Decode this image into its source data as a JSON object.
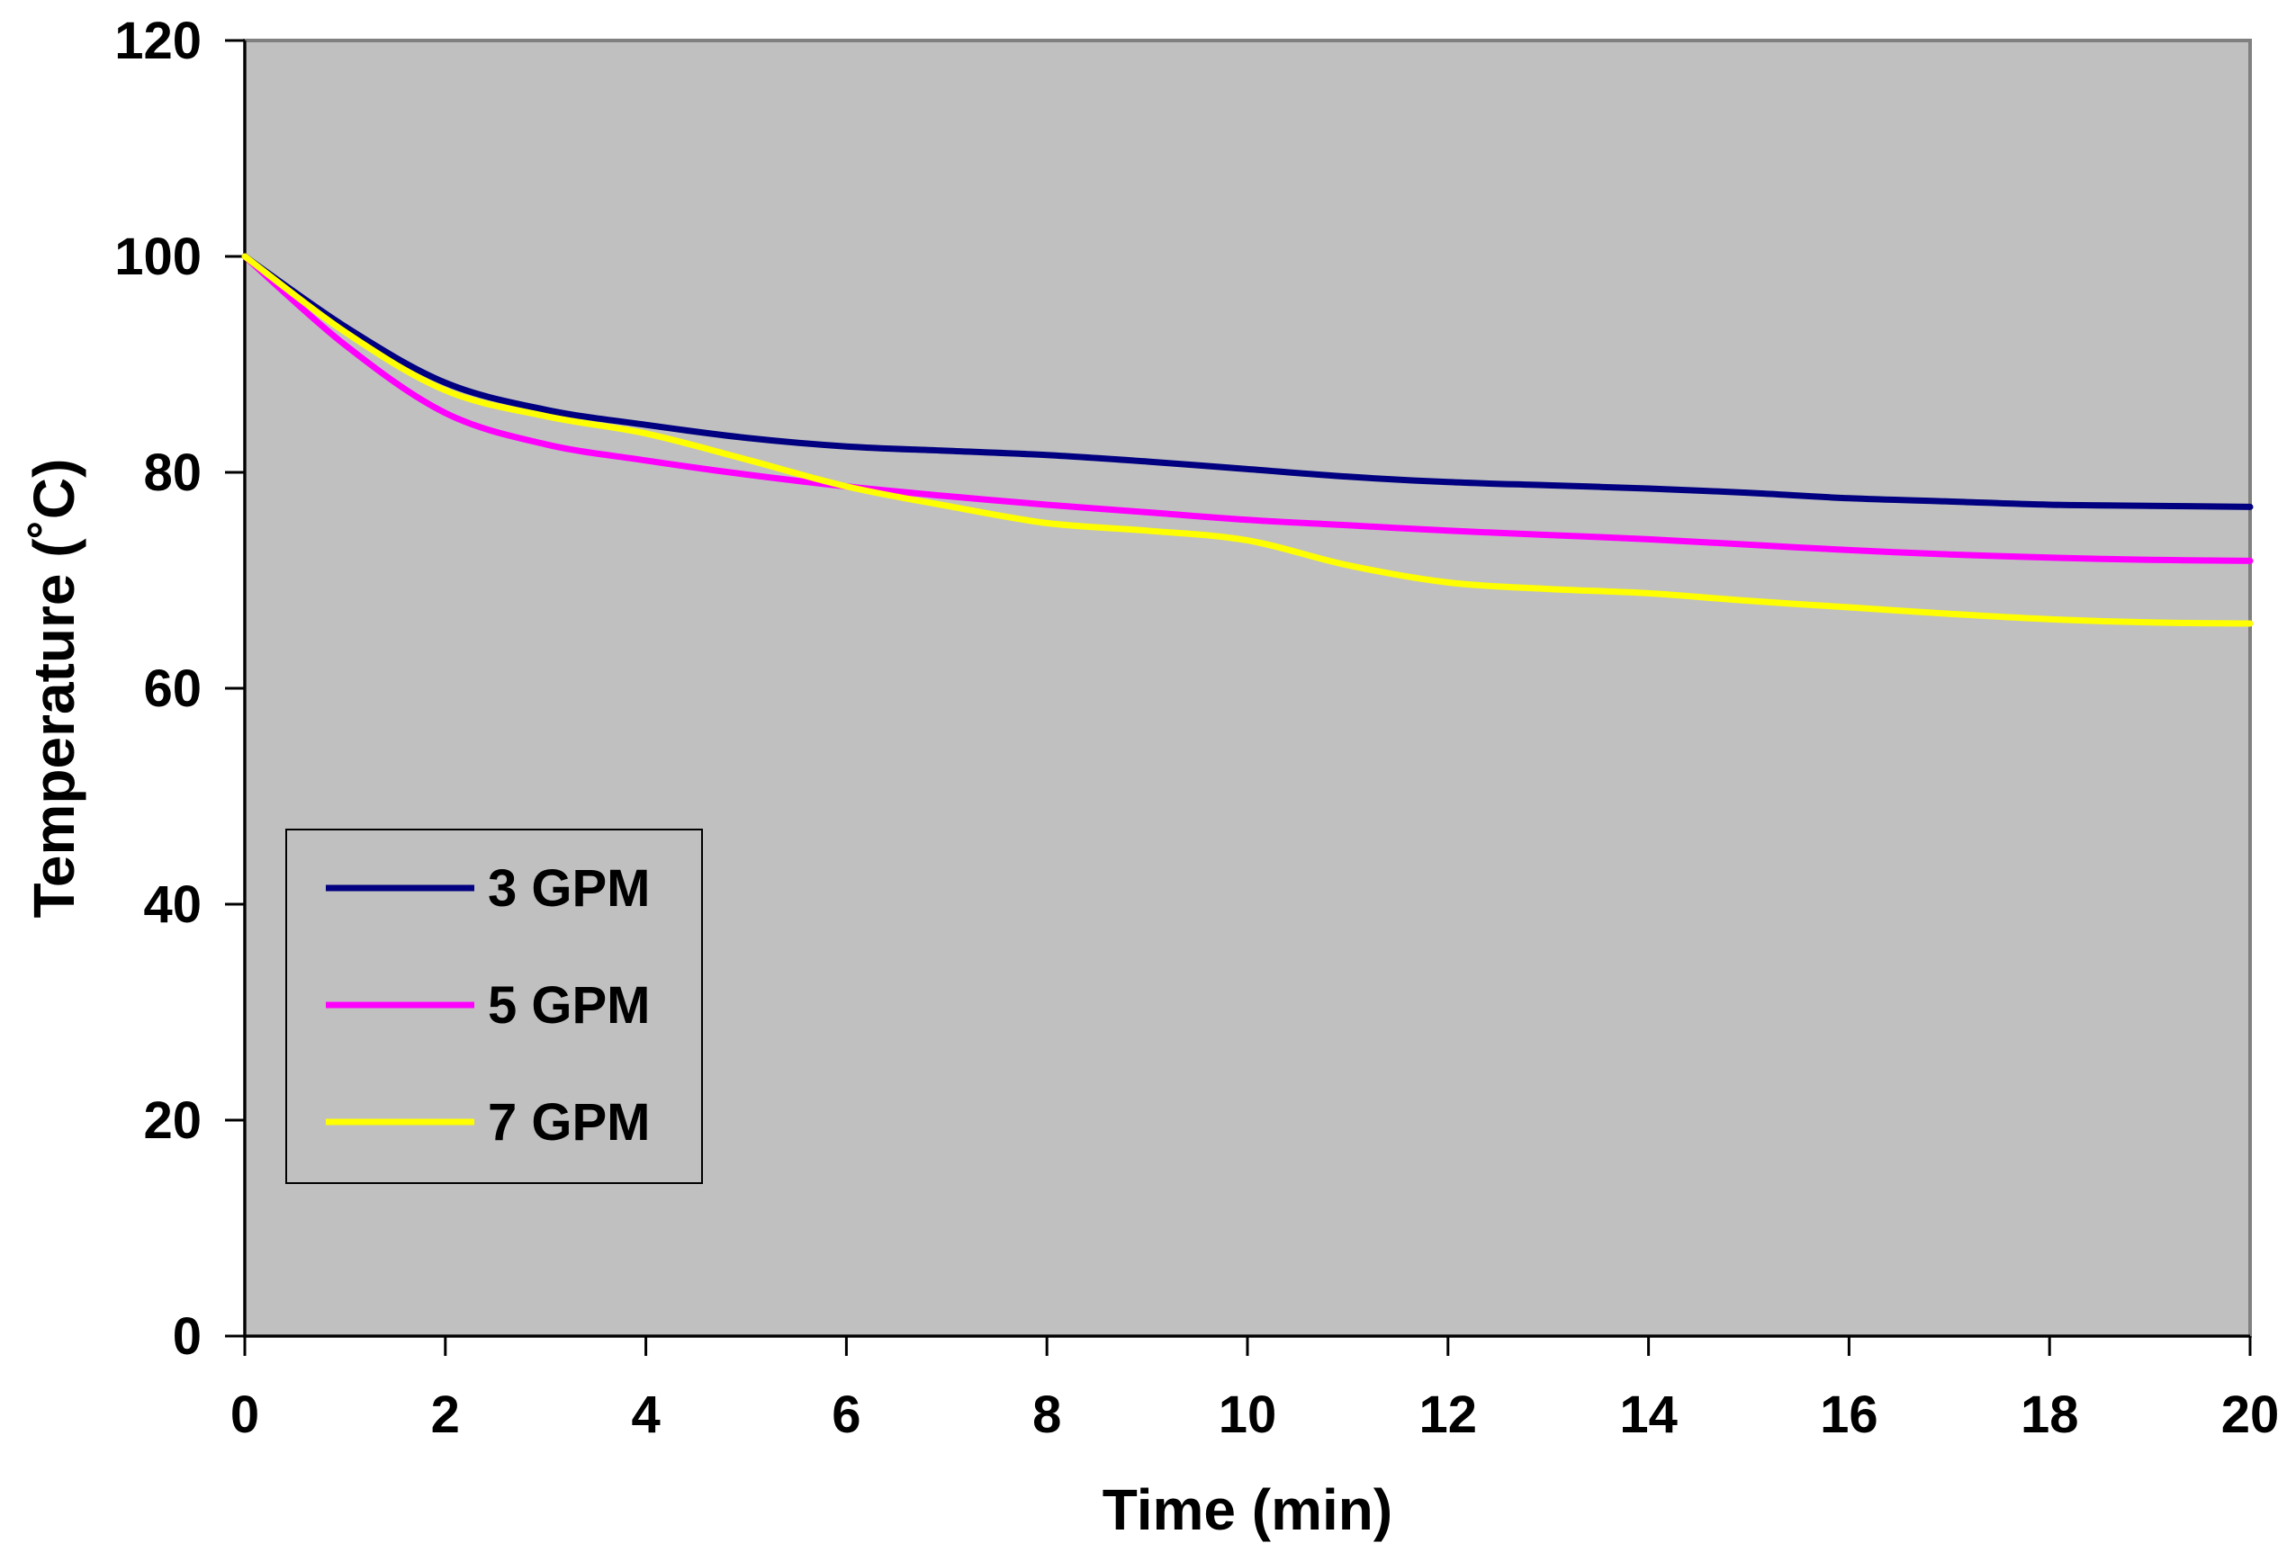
{
  "chart_data": {
    "type": "line",
    "title": "",
    "xlabel": "Time (min)",
    "ylabel": "Temperature (˚C)",
    "xlim": [
      0,
      20
    ],
    "ylim": [
      0,
      120
    ],
    "xticks": [
      0,
      2,
      4,
      6,
      8,
      10,
      12,
      14,
      16,
      18,
      20
    ],
    "yticks": [
      0,
      20,
      40,
      60,
      80,
      100,
      120
    ],
    "grid": false,
    "legend_position": "lower-left",
    "series": [
      {
        "name": "3 GPM",
        "color": "#000080",
        "x": [
          0,
          1,
          2,
          3,
          4,
          5,
          6,
          7,
          8,
          9,
          10,
          11,
          12,
          13,
          14,
          15,
          16,
          17,
          18,
          19,
          20
        ],
        "y": [
          100,
          93.5,
          88.3,
          85.8,
          84.4,
          83.2,
          82.4,
          82.0,
          81.6,
          81.0,
          80.3,
          79.6,
          79.1,
          78.8,
          78.5,
          78.1,
          77.6,
          77.3,
          77.0,
          76.9,
          76.8
        ]
      },
      {
        "name": "5 GPM",
        "color": "#FF00FF",
        "x": [
          0,
          1,
          2,
          3,
          4,
          5,
          6,
          7,
          8,
          9,
          10,
          11,
          12,
          13,
          14,
          15,
          16,
          17,
          18,
          19,
          20
        ],
        "y": [
          100,
          91.8,
          85.5,
          82.6,
          81.1,
          79.8,
          78.7,
          77.8,
          77.0,
          76.3,
          75.6,
          75.1,
          74.6,
          74.2,
          73.8,
          73.3,
          72.8,
          72.4,
          72.1,
          71.9,
          71.8
        ]
      },
      {
        "name": "7 GPM",
        "color": "#FFFF00",
        "x": [
          0,
          1,
          2,
          3,
          4,
          5,
          6,
          7,
          8,
          9,
          10,
          11,
          12,
          13,
          14,
          15,
          16,
          17,
          18,
          19,
          20
        ],
        "y": [
          100,
          93.0,
          87.6,
          85.2,
          83.6,
          81.2,
          78.7,
          76.9,
          75.3,
          74.6,
          73.7,
          71.4,
          69.8,
          69.2,
          68.8,
          68.1,
          67.5,
          66.9,
          66.4,
          66.1,
          66.0
        ]
      }
    ]
  }
}
